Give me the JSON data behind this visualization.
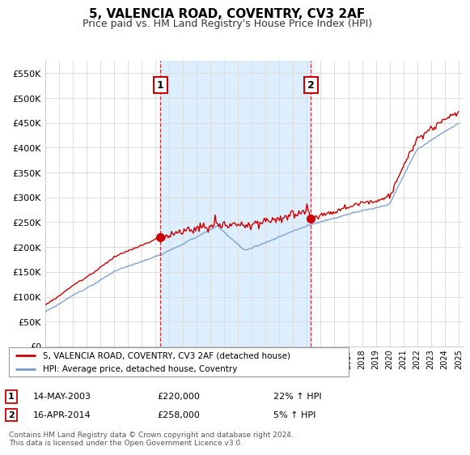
{
  "title": "5, VALENCIA ROAD, COVENTRY, CV3 2AF",
  "subtitle": "Price paid vs. HM Land Registry's House Price Index (HPI)",
  "sale1_date": "14-MAY-2003",
  "sale1_price": 220000,
  "sale1_hpi": "22% ↑ HPI",
  "sale2_date": "16-APR-2014",
  "sale2_price": 258000,
  "sale2_hpi": "5% ↑ HPI",
  "legend_house": "5, VALENCIA ROAD, COVENTRY, CV3 2AF (detached house)",
  "legend_hpi": "HPI: Average price, detached house, Coventry",
  "footnote": "Contains HM Land Registry data © Crown copyright and database right 2024.\nThis data is licensed under the Open Government Licence v3.0.",
  "house_color": "#cc0000",
  "hpi_color": "#7799cc",
  "fill_color": "#ddeeff",
  "ylim": [
    0,
    575000
  ],
  "yticks": [
    0,
    50000,
    100000,
    150000,
    200000,
    250000,
    300000,
    350000,
    400000,
    450000,
    500000,
    550000
  ],
  "background_color": "#ffffff",
  "grid_color": "#dddddd",
  "sale1_year": 2003.37,
  "sale2_year": 2014.29,
  "xmin": 1995,
  "xmax": 2025.3
}
